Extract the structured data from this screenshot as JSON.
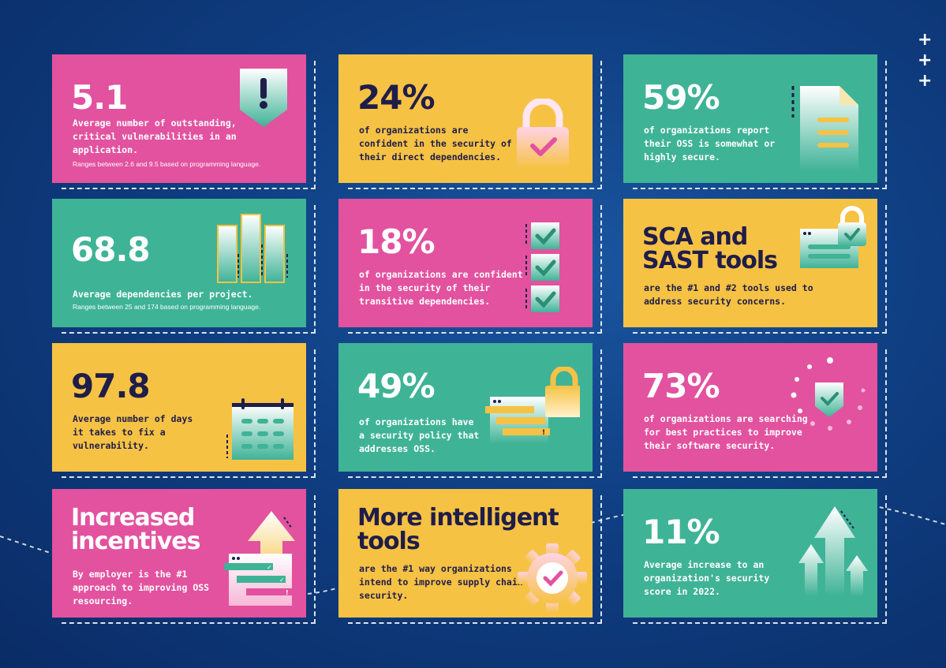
{
  "cards": [
    {
      "value": "5.1",
      "desc": "Average number of outstanding,\ncritical vulnerabilities in an\napplication.",
      "note": "Ranges between 2.6 and 9.5 based on programming language."
    },
    {
      "value": "24%",
      "desc": "of organizations are\nconfident in the security of\ntheir direct dependencies."
    },
    {
      "value": "59%",
      "desc": "of organizations report\ntheir OSS is somewhat or\nhighly secure."
    },
    {
      "value": "68.8",
      "desc": "Average dependencies per project.",
      "note": "Ranges between 25 and 174 based on programming language."
    },
    {
      "value": "18%",
      "desc": "of organizations are confident\nin the security of their\ntransitive dependencies."
    },
    {
      "value": "SCA and\nSAST tools",
      "desc": "are the #1 and #2 tools used to\naddress security concerns."
    },
    {
      "value": "97.8",
      "desc": "Average number of days\nit takes to fix a\nvulnerability."
    },
    {
      "value": "49%",
      "desc": "of organizations have\na security policy that\naddresses OSS."
    },
    {
      "value": "73%",
      "desc": "of organizations are searching\nfor best practices to improve\ntheir software security."
    },
    {
      "value": "Increased\nincentives",
      "desc": "By employer is the #1\napproach to improving OSS\nresourcing."
    },
    {
      "value": "More intelligent\ntools",
      "desc": "are the #1 way organizations\nintend to improve supply chain\nsecurity."
    },
    {
      "value": "11%",
      "desc": "Average increase to an\norganization's security\nscore in 2022."
    }
  ],
  "decor": {
    "plus": "+",
    "alert": "!",
    "check": "✓"
  },
  "colors": {
    "pink": "#e2529f",
    "yellow": "#f6c244",
    "green": "#3fb396",
    "navy": "#1f1d4a"
  }
}
